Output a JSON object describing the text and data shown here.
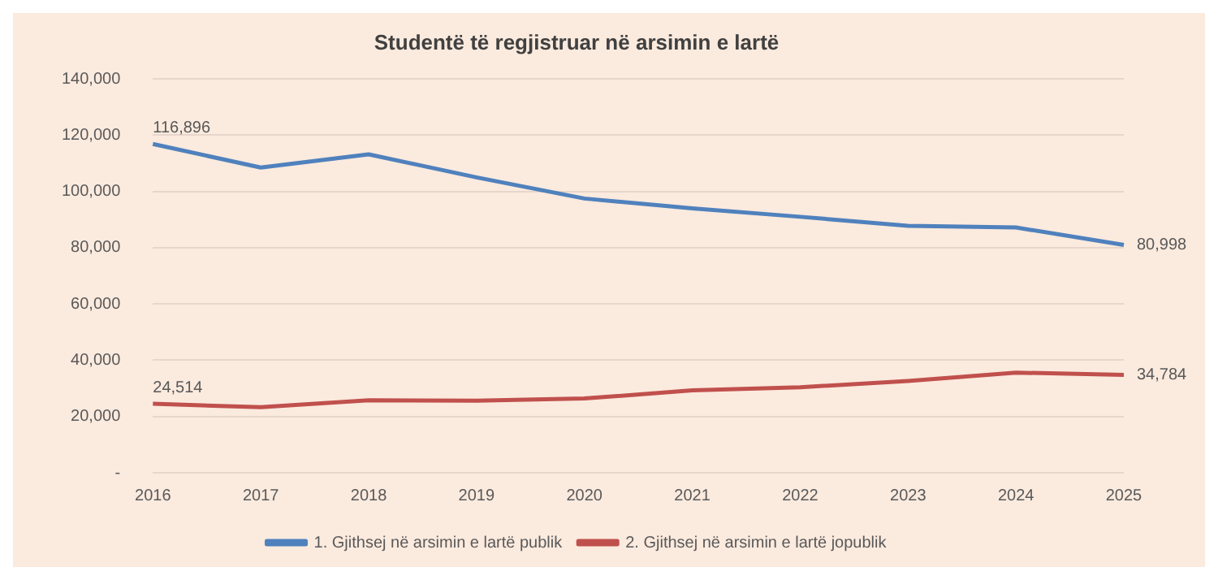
{
  "chart_data": {
    "type": "line",
    "title": "Studentë të regjistruar në arsimin e lartë",
    "categories": [
      "2016",
      "2017",
      "2018",
      "2019",
      "2020",
      "2021",
      "2022",
      "2023",
      "2024",
      "2025"
    ],
    "series": [
      {
        "name": "1. Gjithsej në arsimin e lartë publik",
        "color": "#4f81bd",
        "values": [
          116896,
          108500,
          113200,
          105000,
          97500,
          94000,
          91000,
          87800,
          87200,
          80998
        ],
        "value_labels": [
          "116,896",
          null,
          null,
          null,
          null,
          null,
          null,
          null,
          null,
          "80,998"
        ]
      },
      {
        "name": "2. Gjithsej në arsimin e lartë jopublik",
        "color": "#c0504d",
        "values": [
          24514,
          23300,
          25800,
          25600,
          26400,
          29300,
          30400,
          32600,
          35600,
          34784
        ],
        "value_labels": [
          "24,514",
          null,
          null,
          null,
          null,
          null,
          null,
          null,
          null,
          "34,784"
        ]
      }
    ],
    "ylim": [
      0,
      140000
    ],
    "yticks": [
      {
        "value": 0,
        "label": "-"
      },
      {
        "value": 20000,
        "label": "20,000"
      },
      {
        "value": 40000,
        "label": "40,000"
      },
      {
        "value": 60000,
        "label": "60,000"
      },
      {
        "value": 80000,
        "label": "80,000"
      },
      {
        "value": 100000,
        "label": "100,000"
      },
      {
        "value": 120000,
        "label": "120,000"
      },
      {
        "value": 140000,
        "label": "140,000"
      }
    ],
    "grid": "y",
    "legend": "bottom",
    "marker": "none",
    "line_style": "solid"
  }
}
